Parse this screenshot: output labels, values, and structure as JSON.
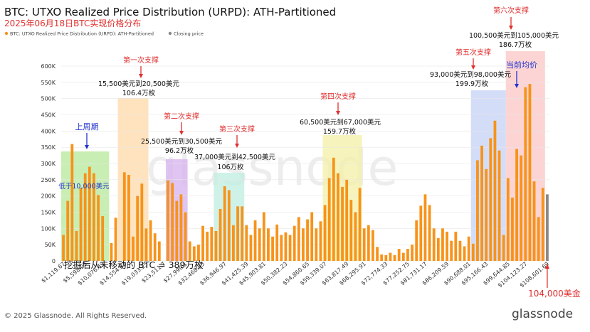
{
  "chart_data": {
    "type": "bar",
    "title": "BTC: UTXO Realized Price Distribution (URPD): ATH-Partitioned",
    "subtitle": "2025年06月18日BTC实现价格分布",
    "legend": [
      {
        "name": "BTC: UTXO Realized Price Distribution (URPD): ATH-Partitioned",
        "color": "#f7931a"
      },
      {
        "name": "Closing price",
        "color": "#888888"
      }
    ],
    "ylim": [
      0,
      600000
    ],
    "y_ticks": [
      "0",
      "50K",
      "100K",
      "150K",
      "200K",
      "250K",
      "300K",
      "350K",
      "400K",
      "450K",
      "500K",
      "550K",
      "600K"
    ],
    "y_tick_values": [
      0,
      50000,
      100000,
      150000,
      200000,
      250000,
      300000,
      350000,
      400000,
      450000,
      500000,
      550000,
      600000
    ],
    "x_tick_labels": [
      "$1,119.67",
      "$5,598.03",
      "$10,076.43",
      "$14,554.82",
      "$19,033.25",
      "$23,511.7",
      "$27,990.1",
      "$32,468.55",
      "$36,946.97",
      "$41,425.39",
      "$45,903.81",
      "$50,382.23",
      "$54,860.65",
      "$59,339.07",
      "$63,817.49",
      "$68,295.91",
      "$72,774.33",
      "$77,252.75",
      "$81,731.17",
      "$86,209.59",
      "$90,688.01",
      "$95,166.43",
      "$99,644.85",
      "$104,123.27",
      "$108,601.69"
    ],
    "bar_color": "#f7931a",
    "closing_bar_color": "#888888",
    "closing_bar_index": 111,
    "values": [
      80000,
      185000,
      360000,
      92000,
      225000,
      270000,
      290000,
      270000,
      203000,
      138000,
      0,
      55000,
      133000,
      0,
      273000,
      265000,
      75000,
      200000,
      238000,
      100000,
      125000,
      85000,
      60000,
      0,
      248000,
      240000,
      185000,
      205000,
      150000,
      60000,
      45000,
      50000,
      108000,
      90000,
      105000,
      92000,
      160000,
      230000,
      218000,
      110000,
      168000,
      168000,
      110000,
      80000,
      125000,
      100000,
      150000,
      100000,
      75000,
      112000,
      80000,
      88000,
      80000,
      108000,
      135000,
      100000,
      128000,
      150000,
      100000,
      122000,
      172000,
      255000,
      318000,
      270000,
      228000,
      250000,
      188000,
      150000,
      225000,
      100000,
      110000,
      95000,
      43000,
      20000,
      18000,
      25000,
      18000,
      37000,
      25000,
      37000,
      50000,
      125000,
      170000,
      205000,
      172000,
      100000,
      70000,
      100000,
      90000,
      62000,
      90000,
      62000,
      45000,
      75000,
      53000,
      310000,
      355000,
      283000,
      378000,
      432000,
      340000,
      80000,
      255000,
      195000,
      345000,
      325000,
      535000,
      545000,
      245000,
      135000,
      225000,
      205000
    ],
    "annotations": [
      {
        "label": "第一次支撑",
        "range": "15,500美元到20,500美元",
        "amount": "106.4万枚"
      },
      {
        "label": "第二次支撑",
        "range": "25,500美元到30,500美元",
        "amount": "96.2万枚"
      },
      {
        "label": "第三次支撑",
        "range": "37,000美元到42,500美元",
        "amount": "106万枚"
      },
      {
        "label": "第四次支撑",
        "range": "60,500美元到67,000美元",
        "amount": "159.7万枚"
      },
      {
        "label": "第五次支撑",
        "range": "93,000美元到98,000美元",
        "amount": "199.9万枚"
      },
      {
        "label": "第六次支撑",
        "range": "100,500美元到105,000美元",
        "amount": "186.7万枚"
      }
    ],
    "prev_cycle_label": "上周期",
    "prev_cycle_note": "低于10,000美元",
    "current_price_label": "当前均价",
    "current_price_value": "104,000美金",
    "unmoved_note": "挖掘后从未移动的 BTC = 389万枚"
  },
  "footer": {
    "copyright": "© 2025 Glassnode. All Rights Reserved.",
    "brand": "glassnode",
    "watermark": "glassnode"
  }
}
